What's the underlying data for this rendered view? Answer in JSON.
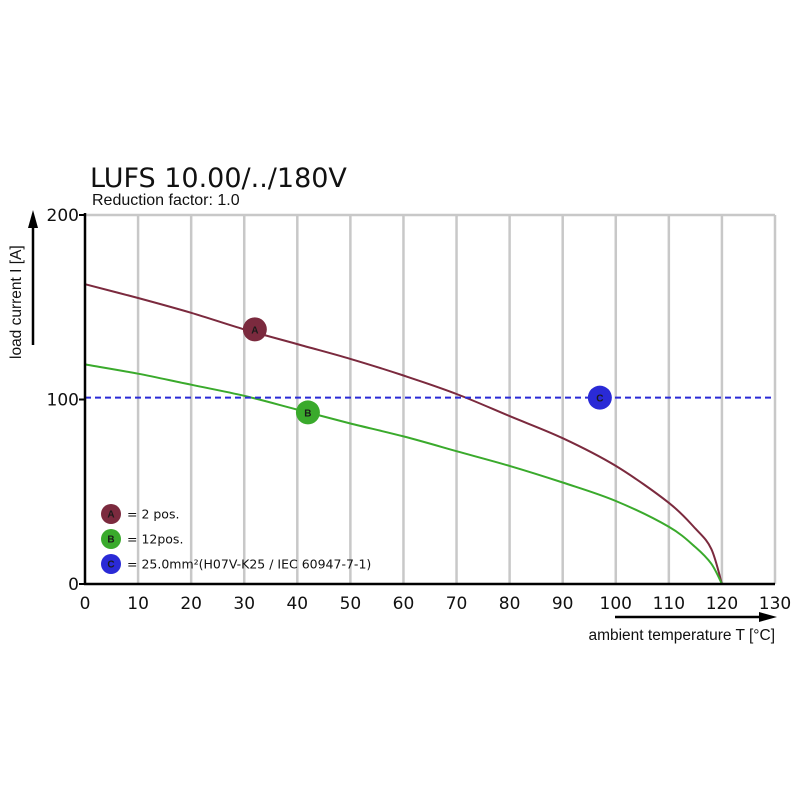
{
  "chart_data": {
    "type": "line",
    "title": "LUFS 10.00/../180V",
    "subtitle": "Reduction factor: 1.0",
    "xlabel": "ambient temperature T [°C]",
    "ylabel": "load current I [A]",
    "xlim": [
      0,
      130
    ],
    "ylim": [
      0,
      200
    ],
    "x_ticks": [
      0,
      10,
      20,
      30,
      40,
      50,
      60,
      70,
      80,
      90,
      100,
      110,
      120,
      130
    ],
    "y_ticks": [
      0,
      100,
      200
    ],
    "series": [
      {
        "id": "A",
        "name": "2 pos.",
        "legend_label": "= 2 pos.",
        "color": "#7b2a3e",
        "style": "solid",
        "x": [
          0,
          10,
          20,
          30,
          40,
          50,
          60,
          70,
          80,
          90,
          100,
          110,
          115,
          118,
          120
        ],
        "y": [
          162.5,
          155,
          147,
          138,
          130,
          122,
          113,
          103,
          91,
          79,
          64,
          44,
          30,
          19,
          0
        ],
        "marker_x": 32,
        "marker_y": 138
      },
      {
        "id": "B",
        "name": "12 pos.",
        "legend_label": "= 12pos.",
        "color": "#3aaa2c",
        "style": "solid",
        "x": [
          0,
          10,
          20,
          30,
          40,
          50,
          60,
          70,
          80,
          90,
          100,
          110,
          115,
          118,
          120
        ],
        "y": [
          119,
          114,
          108,
          102,
          94.5,
          87,
          80,
          72,
          64,
          55,
          45,
          31,
          20,
          11,
          0
        ],
        "marker_x": 42,
        "marker_y": 93
      },
      {
        "id": "C",
        "name": "25.0mm²(H07V-K25 / IEC 60947-7-1)",
        "legend_label": "= 25.0mm²(H07V-K25 / IEC 60947-7-1)",
        "color": "#2a2ad6",
        "style": "dashed",
        "x": [
          0,
          130
        ],
        "y": [
          101,
          101
        ],
        "marker_x": 97,
        "marker_y": 101
      }
    ],
    "legend_position": "bottom-left",
    "grid": true
  }
}
